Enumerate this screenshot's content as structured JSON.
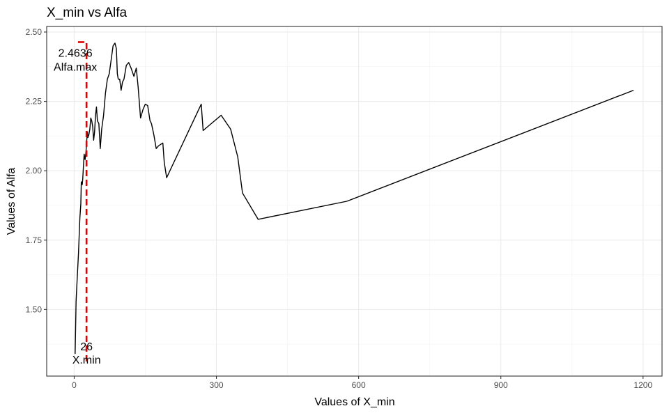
{
  "chart_data": {
    "type": "line",
    "title": "X_min vs Alfa",
    "xlabel": "Values of X_min",
    "ylabel": "Values of Alfa",
    "xlim": [
      -58,
      1240
    ],
    "ylim": [
      1.26,
      2.52
    ],
    "x_ticks": [
      0,
      300,
      600,
      900,
      1200
    ],
    "x_tick_labels": [
      "0",
      "300",
      "600",
      "900",
      "1200"
    ],
    "y_ticks": [
      1.5,
      1.75,
      2.0,
      2.25,
      2.5
    ],
    "y_tick_labels": [
      "1.50",
      "1.75",
      "2.00",
      "2.25",
      "2.50"
    ],
    "grid": true,
    "series": [
      {
        "color": "#000000",
        "x": [
          2,
          4,
          6,
          9,
          12,
          14,
          15,
          17,
          18,
          20,
          21,
          23,
          25,
          26,
          28,
          29,
          31,
          33,
          35,
          37,
          39,
          41,
          43,
          45,
          47,
          49,
          52,
          55,
          58,
          62,
          66,
          70,
          74,
          78,
          82,
          86,
          89,
          91,
          93,
          96,
          99,
          102,
          105,
          110,
          115,
          120,
          126,
          131,
          135,
          140,
          145,
          150,
          155,
          160,
          163,
          168,
          173,
          178,
          187,
          190,
          195,
          268,
          272,
          310,
          330,
          345,
          355,
          388,
          575,
          1180
        ],
        "y": [
          1.34,
          1.53,
          1.6,
          1.7,
          1.83,
          1.88,
          1.96,
          1.95,
          1.97,
          2.03,
          2.06,
          2.04,
          2.07,
          2.1,
          2.14,
          2.12,
          2.13,
          2.15,
          2.19,
          2.18,
          2.16,
          2.11,
          2.14,
          2.2,
          2.23,
          2.18,
          2.17,
          2.08,
          2.15,
          2.2,
          2.28,
          2.33,
          2.35,
          2.4,
          2.45,
          2.46,
          2.44,
          2.35,
          2.33,
          2.33,
          2.29,
          2.32,
          2.33,
          2.38,
          2.39,
          2.37,
          2.34,
          2.37,
          2.3,
          2.19,
          2.22,
          2.24,
          2.235,
          2.18,
          2.17,
          2.13,
          2.08,
          2.09,
          2.1,
          2.03,
          1.975,
          2.24,
          2.145,
          2.2,
          2.15,
          2.05,
          1.92,
          1.825,
          1.89,
          2.29
        ]
      }
    ],
    "annotations": {
      "vline": {
        "x": 26,
        "color": "#e00000"
      },
      "hline": {
        "y": 2.4636,
        "x_from": 8,
        "x_to": 26,
        "color": "#e00000"
      },
      "max_value_label": "2.4636",
      "max_name_label": "Alfa.max",
      "xmin_value_label": "26",
      "xmin_name_label": "X.min"
    }
  }
}
